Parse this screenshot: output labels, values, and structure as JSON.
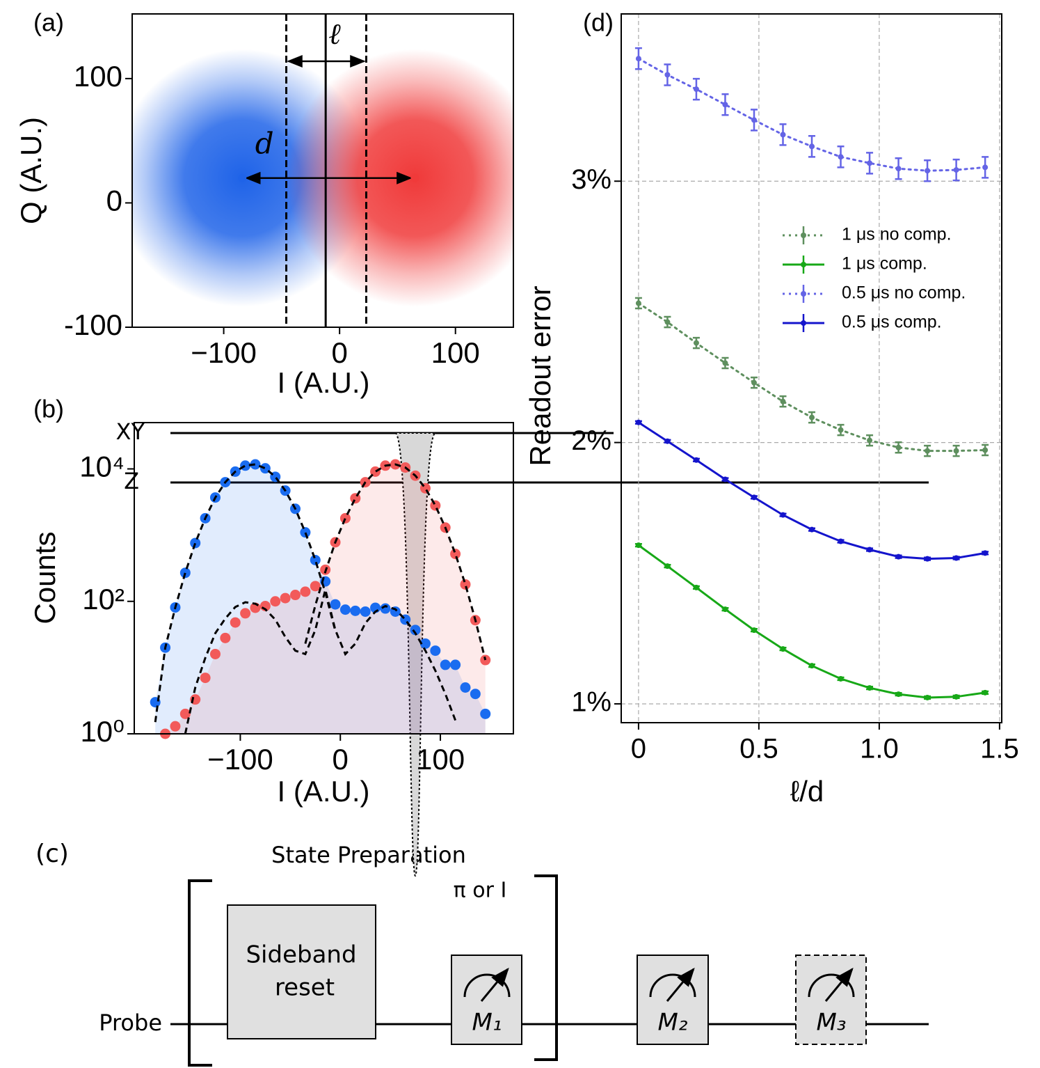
{
  "chart_data": [
    {
      "type": "scatter",
      "title": "(a)",
      "xlabel": "I (A.U.)",
      "ylabel": "Q (A.U.)",
      "xlim": [
        -179,
        150
      ],
      "ylim": [
        -100,
        152
      ],
      "xticks": [
        {
          "value": -100,
          "label": "−100"
        },
        0,
        100
      ],
      "yticks": [
        -100,
        0,
        100
      ],
      "series": [
        {
          "color": "#1f63e8",
          "x": [
            -84
          ],
          "values": [
            20
          ]
        },
        {
          "color": "#f03a3a",
          "x": [
            65
          ],
          "values": [
            20
          ]
        }
      ],
      "threshold": -12,
      "window": [
        -46,
        23
      ],
      "annotations": [
        "ℓ",
        "d"
      ]
    },
    {
      "type": "scatter",
      "title": "(b)",
      "xlabel": "I (A.U.)",
      "ylabel": "Counts",
      "ylog": true,
      "xlim": [
        -206,
        173
      ],
      "ylim": [
        1,
        50000
      ],
      "xticks": [
        {
          "value": -100,
          "label": "−100"
        },
        0,
        100
      ],
      "yticks": [
        {
          "value": 1,
          "label": "10⁰"
        },
        {
          "value": 100,
          "label": "10²"
        },
        {
          "value": 10000,
          "label": "10⁴"
        }
      ],
      "x": [
        -185,
        -175,
        -165,
        -155,
        -145,
        -135,
        -125,
        -115,
        -105,
        -95,
        -85,
        -75,
        -65,
        -55,
        -45,
        -35,
        -25,
        -15,
        -5,
        5,
        15,
        25,
        35,
        45,
        55,
        65,
        75,
        85,
        95,
        105,
        115,
        125,
        135,
        145
      ],
      "series": [
        {
          "color": "#1a6cf0",
          "style": "points",
          "values": [
            3,
            20,
            81,
            270,
            760,
            1800,
            3700,
            6300,
            9100,
            11200,
            11700,
            10200,
            7600,
            4700,
            2500,
            1100,
            420,
            200,
            90,
            75,
            72,
            70,
            80,
            78,
            70,
            53,
            37,
            23,
            18,
            11,
            11,
            5,
            4,
            2
          ]
        },
        {
          "color": "#f25a5a",
          "style": "points",
          "values": [
            null,
            1,
            1.3,
            2,
            3.3,
            7,
            16,
            28,
            48,
            66,
            80,
            85,
            100,
            112,
            125,
            140,
            170,
            300,
            780,
            1800,
            3600,
            6300,
            9100,
            11200,
            11700,
            10500,
            7900,
            5100,
            2800,
            1300,
            520,
            180,
            52,
            13
          ]
        },
        {
          "color": "#000000",
          "style": "dashed",
          "values": [
            1.5,
            20,
            81,
            270,
            760,
            1800,
            3700,
            6300,
            9100,
            11200,
            11700,
            10200,
            7600,
            4700,
            2500,
            1100,
            420,
            135,
            36,
            null,
            null,
            null,
            null,
            null,
            null,
            null,
            null,
            null,
            null,
            null,
            null,
            null,
            null,
            null
          ]
        },
        {
          "color": "#000000",
          "style": "dashed",
          "values": [
            null,
            null,
            null,
            null,
            null,
            null,
            null,
            null,
            null,
            null,
            null,
            null,
            null,
            null,
            null,
            23,
            87,
            280,
            780,
            1800,
            3600,
            6300,
            9100,
            11200,
            11700,
            10500,
            7900,
            5100,
            2800,
            1300,
            520,
            180,
            52,
            13
          ]
        },
        {
          "color": "#000000",
          "style": "dashed",
          "values": [
            null,
            null,
            null,
            1,
            5,
            14,
            33,
            55,
            82,
            97,
            92,
            76,
            53,
            29,
            18,
            16,
            37,
            150,
            37,
            16,
            23,
            47,
            70,
            85,
            76,
            53,
            33,
            18,
            9,
            4,
            1.6,
            null,
            null,
            null
          ]
        }
      ]
    },
    {
      "type": "line",
      "title": "(d)",
      "xlabel": "ℓ/d",
      "ylabel": "Readout error",
      "xlim": [
        -0.072,
        1.509
      ],
      "ylim": [
        0.928,
        3.64
      ],
      "grid": true,
      "legend": "center right",
      "xticks": [
        0,
        0.5,
        {
          "value": 1,
          "label": "1.0"
        },
        1.5
      ],
      "yticks": [
        {
          "value": 1,
          "label": "1%"
        },
        {
          "value": 2,
          "label": "2%"
        },
        {
          "value": 3,
          "label": "3%"
        }
      ],
      "x": [
        0,
        0.12,
        0.24,
        0.36,
        0.48,
        0.6,
        0.72,
        0.84,
        0.96,
        1.08,
        1.2,
        1.32,
        1.44
      ],
      "series": [
        {
          "name": "1 μs no comp.",
          "color": "#5e8f5e",
          "style": "dotted",
          "values": [
            2.533,
            2.461,
            2.381,
            2.304,
            2.229,
            2.157,
            2.096,
            2.048,
            2.008,
            1.981,
            1.968,
            1.968,
            1.971
          ],
          "errors": [
            0.02,
            0.02,
            0.02,
            0.02,
            0.02,
            0.02,
            0.02,
            0.02,
            0.02,
            0.02,
            0.02,
            0.02,
            0.02
          ]
        },
        {
          "name": "1 μs comp.",
          "color": "#17a817",
          "style": "solid",
          "values": [
            1.607,
            1.527,
            1.445,
            1.362,
            1.282,
            1.21,
            1.146,
            1.096,
            1.061,
            1.037,
            1.024,
            1.027,
            1.043
          ],
          "errors": [
            0.005,
            0.005,
            0.005,
            0.005,
            0.005,
            0.005,
            0.005,
            0.005,
            0.005,
            0.005,
            0.005,
            0.005,
            0.005
          ]
        },
        {
          "name": "0.5 μs no comp.",
          "color": "#6464e6",
          "style": "dotted",
          "values": [
            3.469,
            3.407,
            3.352,
            3.293,
            3.234,
            3.178,
            3.133,
            3.093,
            3.069,
            3.048,
            3.04,
            3.043,
            3.053
          ],
          "errors": [
            0.04,
            0.04,
            0.04,
            0.04,
            0.04,
            0.04,
            0.04,
            0.04,
            0.04,
            0.04,
            0.04,
            0.04,
            0.04
          ]
        },
        {
          "name": "0.5 μs comp.",
          "color": "#1414cc",
          "style": "solid",
          "values": [
            2.077,
            2.005,
            1.933,
            1.859,
            1.79,
            1.723,
            1.667,
            1.622,
            1.59,
            1.563,
            1.555,
            1.558,
            1.577
          ],
          "errors": [
            0.005,
            0.005,
            0.005,
            0.005,
            0.005,
            0.005,
            0.005,
            0.005,
            0.005,
            0.005,
            0.005,
            0.005,
            0.005
          ]
        }
      ]
    }
  ],
  "diagram": {
    "label": "(c)",
    "title": "State Preparation",
    "wires": [
      "XY",
      "Z",
      "Probe"
    ],
    "reset": [
      "Sideband",
      "reset"
    ],
    "pulse": "π or I",
    "meters": [
      "M₁",
      "M₂",
      "M₃"
    ]
  }
}
